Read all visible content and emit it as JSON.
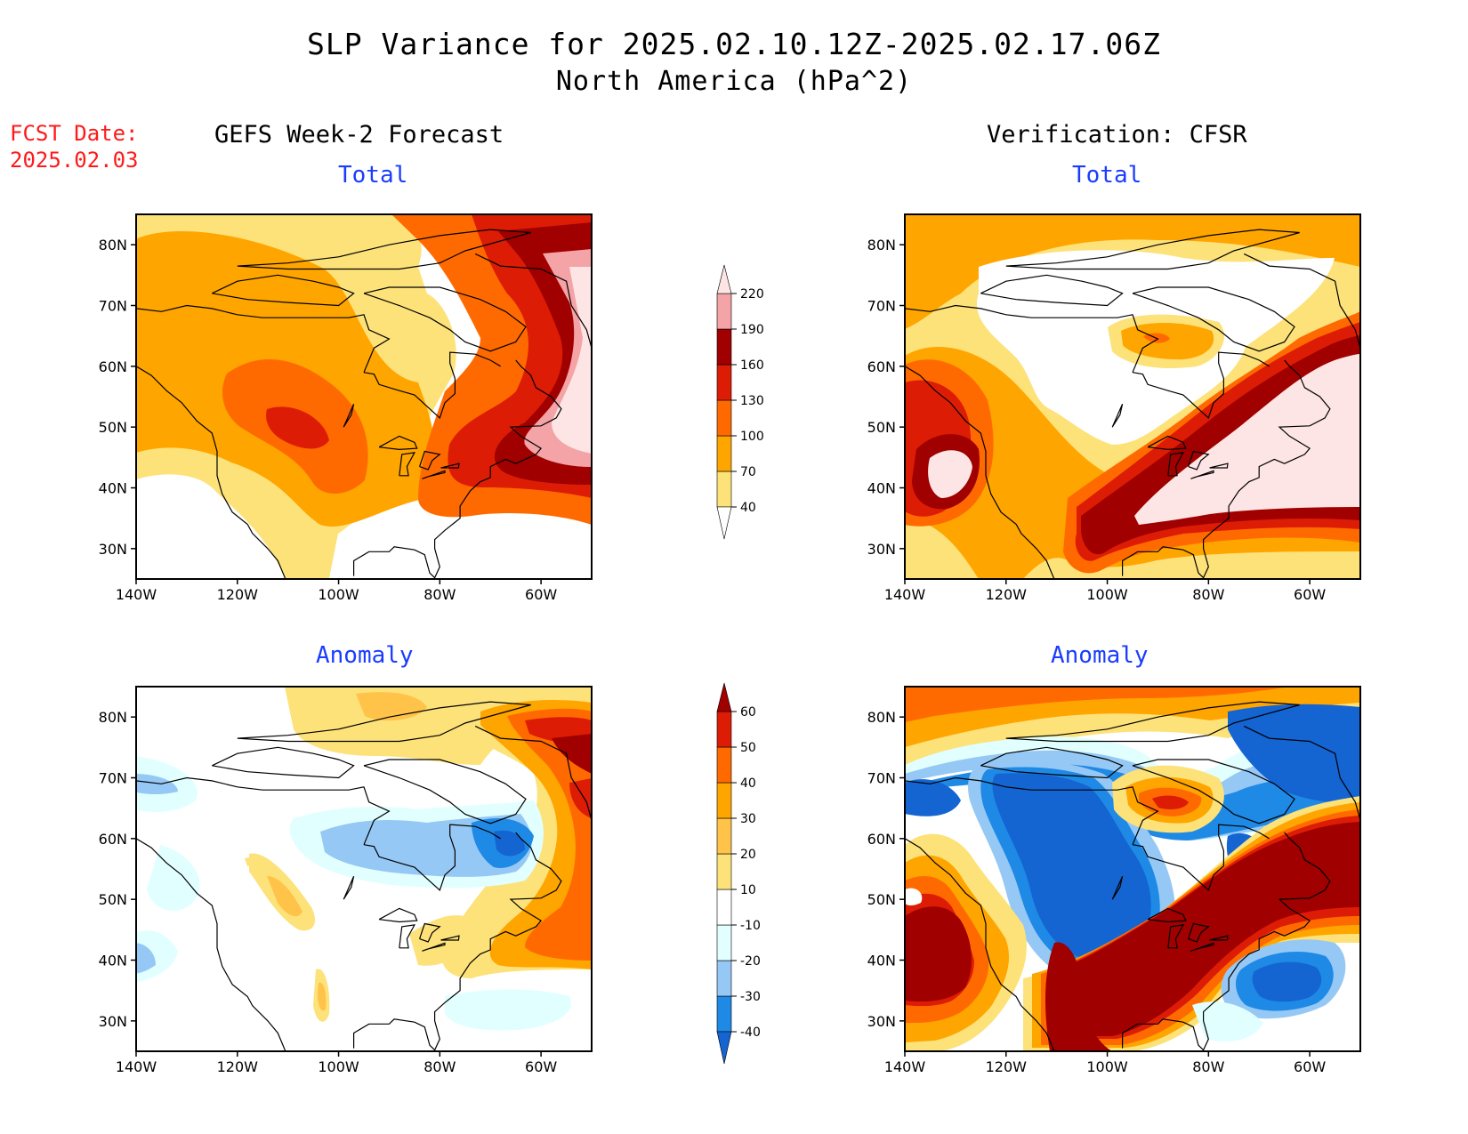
{
  "title": "SLP Variance for 2025.02.10.12Z-2025.02.17.06Z",
  "subtitle": "North America (hPa^2)",
  "fcst_label": "FCST Date:",
  "fcst_date": "2025.02.03",
  "columns": {
    "left": "GEFS Week-2 Forecast",
    "right": "Verification: CFSR"
  },
  "panel_titles": {
    "total": "Total",
    "anomaly": "Anomaly"
  },
  "chart_data": [
    {
      "type": "heatmap",
      "panel": "GEFS Week-2 Forecast - Total",
      "x_range": [
        "140W",
        "50W"
      ],
      "y_range": [
        "25N",
        "85N"
      ],
      "x_ticks": [
        "140W",
        "120W",
        "100W",
        "80W",
        "60W"
      ],
      "y_ticks": [
        "80N",
        "70N",
        "60N",
        "50N",
        "40N",
        "30N"
      ],
      "colorbar": "total",
      "notes": "Max (>190) over Labrador / N Atlantic; 100-130 over northern Great Plains; <40 over SW US"
    },
    {
      "type": "heatmap",
      "panel": "Verification: CFSR - Total",
      "x_range": [
        "140W",
        "50W"
      ],
      "y_range": [
        "25N",
        "85N"
      ],
      "x_ticks": [
        "140W",
        "120W",
        "100W",
        "80W",
        "60W"
      ],
      "y_ticks": [
        "80N",
        "70N",
        "60N",
        "50N",
        "40N",
        "30N"
      ],
      "colorbar": "total",
      "notes": "Max (>220) NE US to N Atlantic and NE Pacific off Oregon; <40 over central Canada"
    },
    {
      "type": "heatmap",
      "panel": "GEFS Week-2 Forecast - Anomaly",
      "x_range": [
        "140W",
        "50W"
      ],
      "y_range": [
        "25N",
        "85N"
      ],
      "x_ticks": [
        "140W",
        "120W",
        "100W",
        "80W",
        "60W"
      ],
      "y_ticks": [
        "80N",
        "70N",
        "60N",
        "50N",
        "40N",
        "30N"
      ],
      "colorbar": "anomaly",
      "notes": "Positive 40-60 over Labrador Sea / Atlantic; negative -20 to -40 over Quebec / Hudson Bay region"
    },
    {
      "type": "heatmap",
      "panel": "Verification: CFSR - Anomaly",
      "x_range": [
        "140W",
        "50W"
      ],
      "y_range": [
        "25N",
        "85N"
      ],
      "x_ticks": [
        "140W",
        "120W",
        "100W",
        "80W",
        "60W"
      ],
      "y_ticks": [
        "80N",
        "70N",
        "60N",
        "50N",
        "40N",
        "30N"
      ],
      "colorbar": "anomaly",
      "notes": "Strong positive (>60) over E US / Atlantic and NE Pacific; strong negative (<-40) over central Canada and Greenland"
    }
  ],
  "colorbars": {
    "total": {
      "levels": [
        "40",
        "70",
        "100",
        "130",
        "160",
        "190",
        "220"
      ],
      "colors": [
        "#ffffff",
        "#fde27a",
        "#ffa500",
        "#ff6a00",
        "#dd1c06",
        "#a00000",
        "#f4a3a6",
        "#fde5e5"
      ]
    },
    "anomaly": {
      "levels": [
        "-40",
        "-30",
        "-20",
        "-10",
        "10",
        "20",
        "30",
        "40",
        "50",
        "60"
      ],
      "colors": [
        "#1464d2",
        "#1e8ae6",
        "#96c8f5",
        "#e1ffff",
        "#ffffff",
        "#fde27a",
        "#ffc34a",
        "#ffa500",
        "#ff6a00",
        "#dd1c06",
        "#a00000"
      ]
    }
  }
}
